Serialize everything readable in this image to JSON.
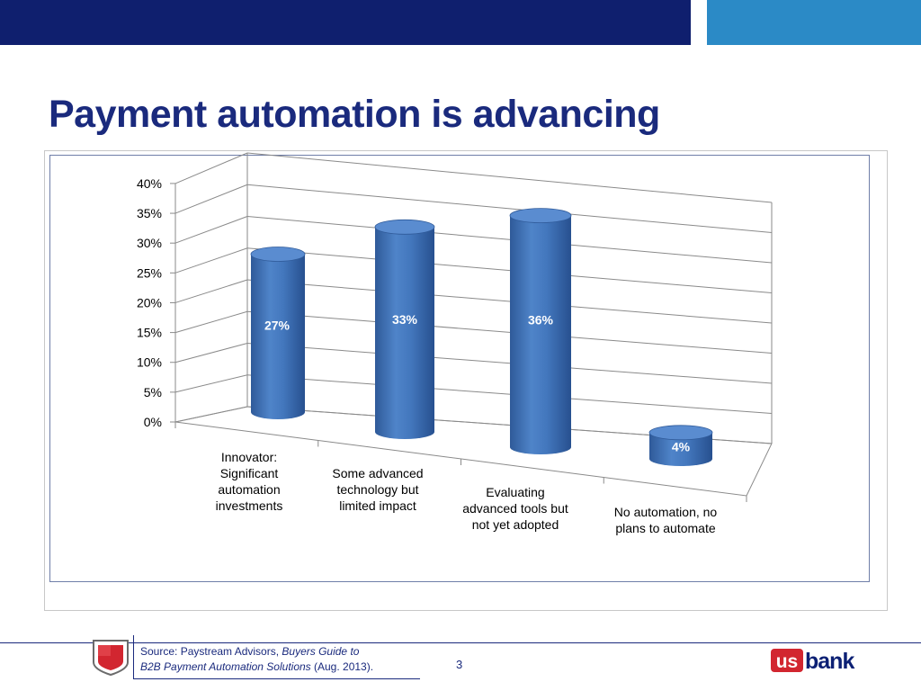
{
  "slide": {
    "title": "Payment automation is advancing",
    "page_number": "3"
  },
  "footer": {
    "source_prefix": "Source: Paystream Advisors, ",
    "source_title_1": "Buyers Guide to",
    "source_title_2": "B2B Payment  Automation Solutions",
    "source_suffix": " (Aug. 2013).",
    "logo_us": "us",
    "logo_bank": "bank"
  },
  "colors": {
    "band_dark": "#0f1f6e",
    "band_light": "#2b8ac6",
    "title": "#1a2a7d",
    "bar_fill": "#3f73b8",
    "bar_top": "#5a8cd0",
    "logo_red": "#d22630",
    "logo_navy": "#0c2074"
  },
  "chart_data": {
    "type": "bar",
    "style": "3d-cylinder",
    "categories": [
      [
        "Innovator:",
        "Significant",
        "automation",
        "investments"
      ],
      [
        "Some advanced",
        "technology but",
        "limited impact"
      ],
      [
        "Evaluating",
        "advanced tools but",
        "not yet adopted"
      ],
      [
        "No automation, no",
        "plans to automate"
      ]
    ],
    "values": [
      27,
      33,
      36,
      4
    ],
    "data_labels": [
      "27%",
      "33%",
      "36%",
      "4%"
    ],
    "ylim": [
      0,
      40
    ],
    "yticks": [
      "0%",
      "5%",
      "10%",
      "15%",
      "20%",
      "25%",
      "30%",
      "35%",
      "40%"
    ],
    "grid": true,
    "legend": "none"
  }
}
